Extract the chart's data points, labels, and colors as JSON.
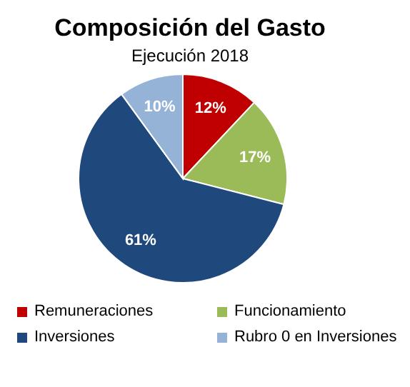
{
  "chart_data": {
    "type": "pie",
    "title": "Composición del Gasto",
    "subtitle": "Ejecución 2018",
    "categories": [
      "Remuneraciones",
      "Funcionamiento",
      "Inversiones",
      "Rubro 0 en Inversiones"
    ],
    "values": [
      12,
      17,
      61,
      10
    ],
    "colors": [
      "#c00000",
      "#9bbb59",
      "#1f497d",
      "#95b3d7"
    ],
    "value_labels": [
      "12%",
      "17%",
      "61%",
      "10%"
    ],
    "legend": "bottom"
  }
}
